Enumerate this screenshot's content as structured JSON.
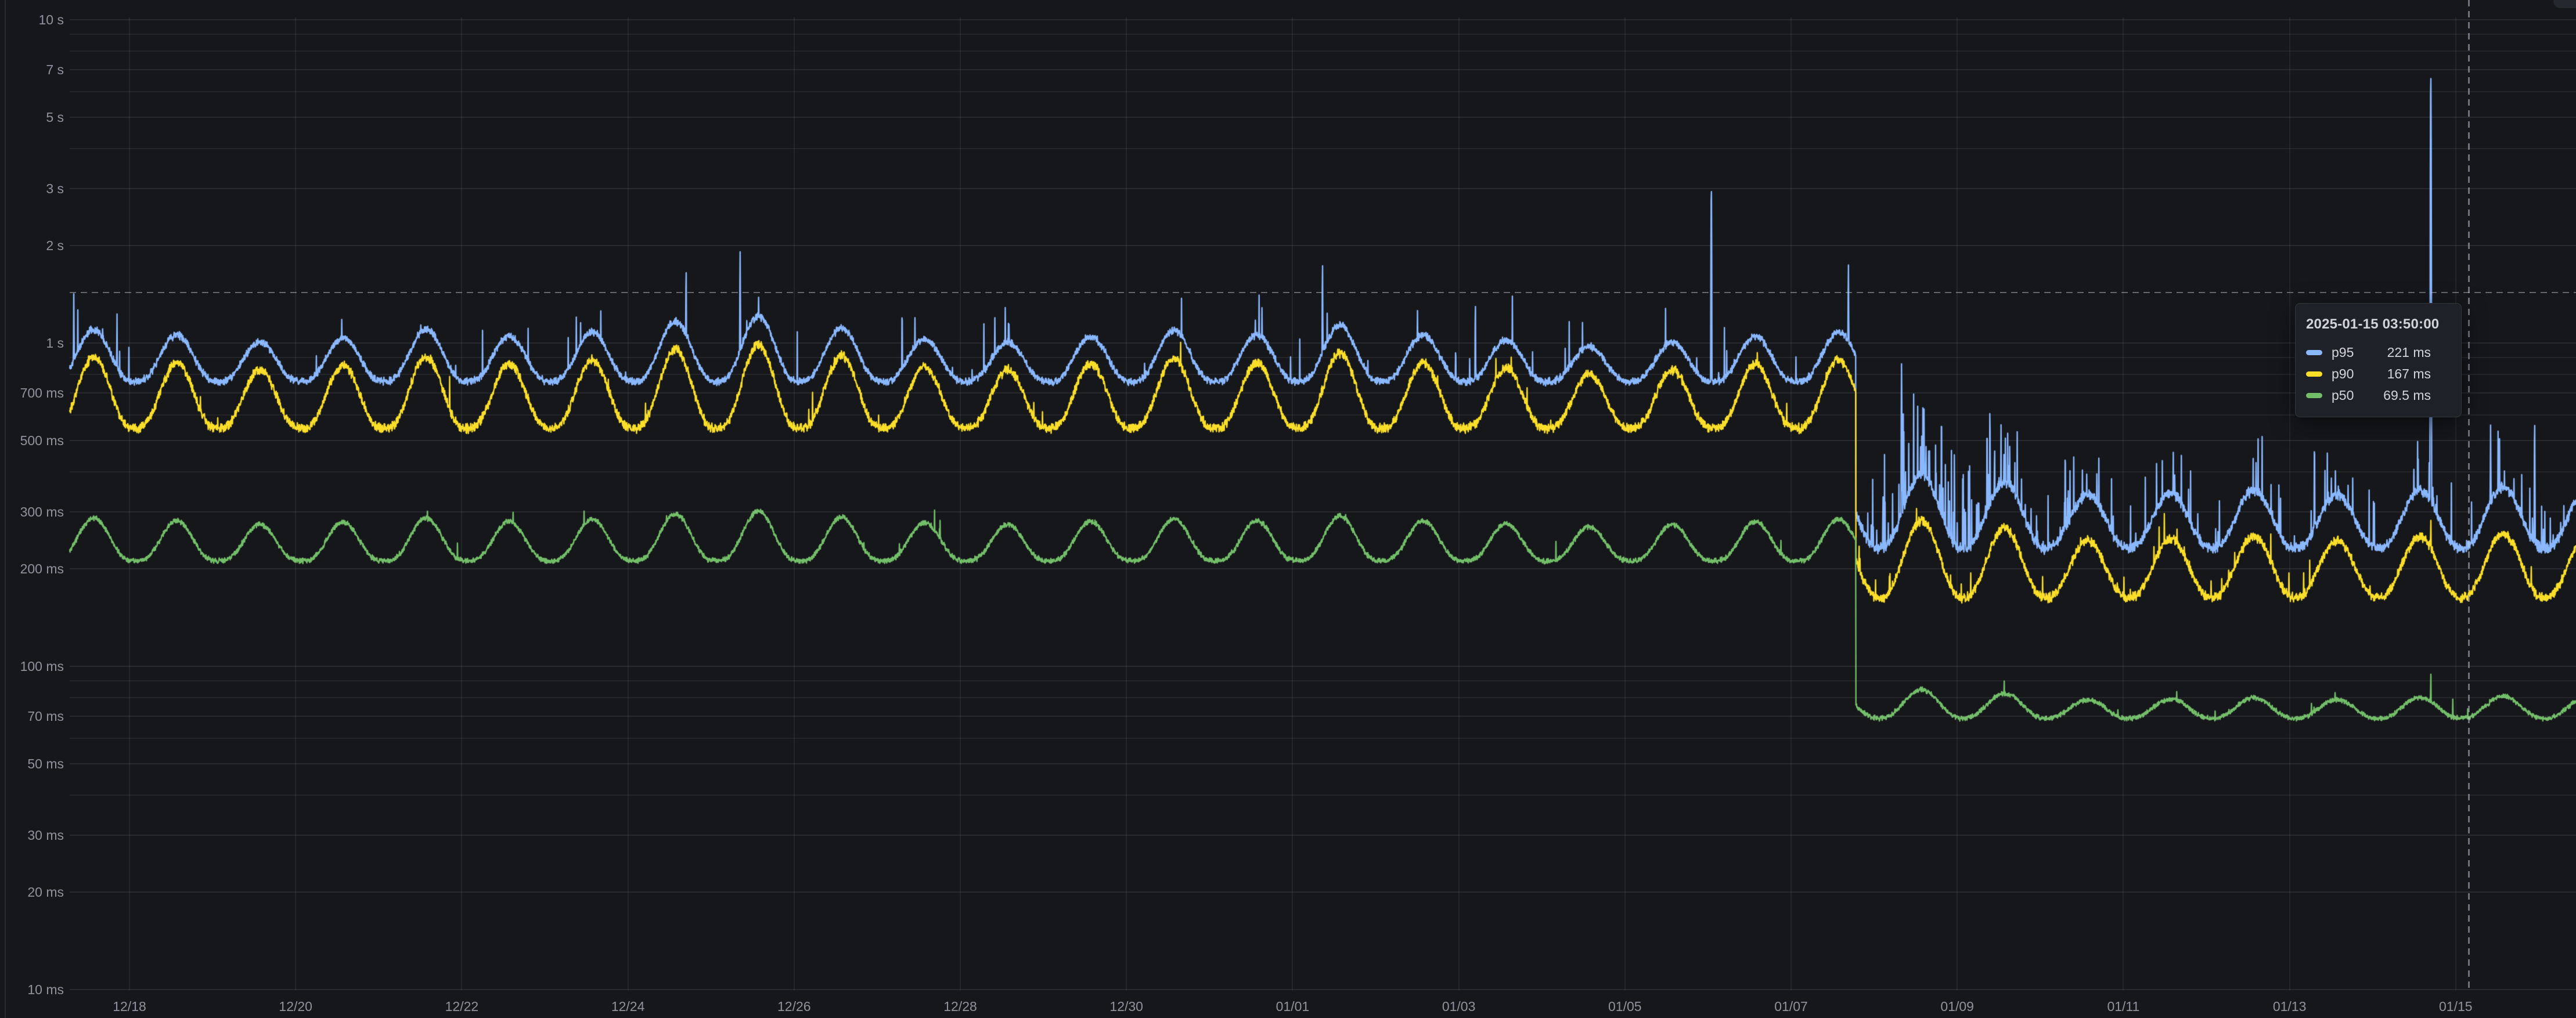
{
  "panel": {
    "theme": {
      "background": "#16171b",
      "grid_color": "rgba(204,204,220,0.08)",
      "text_color": "rgba(204,204,220,0.68)",
      "cursor_color": "rgba(204,204,220,0.50)",
      "tooltip_background": "#1e2127"
    }
  },
  "chart_data": {
    "type": "line",
    "title": "",
    "xlabel": "",
    "ylabel": "",
    "grid": true,
    "legend_position": "none",
    "x_axis": {
      "unit": "date",
      "tick_labels": [
        "12/18",
        "12/20",
        "12/22",
        "12/24",
        "12/26",
        "12/28",
        "12/30",
        "01/01",
        "01/03",
        "01/05",
        "01/07",
        "01/09",
        "01/11",
        "01/13",
        "01/15"
      ],
      "tick_day_offsets": [
        0,
        2,
        4,
        6,
        8,
        10,
        12,
        14,
        16,
        18,
        20,
        22,
        24,
        26,
        28
      ],
      "range_days": [
        -0.719,
        29.45
      ]
    },
    "y_axis": {
      "scale": "log10",
      "unit": "ms",
      "range_ms": [
        10,
        10000
      ],
      "labeled_ticks": [
        {
          "ms": 10000,
          "label": "10 s"
        },
        {
          "ms": 7000,
          "label": "7 s"
        },
        {
          "ms": 5000,
          "label": "5 s"
        },
        {
          "ms": 3000,
          "label": "3 s"
        },
        {
          "ms": 2000,
          "label": "2 s"
        },
        {
          "ms": 1000,
          "label": "1 s"
        },
        {
          "ms": 700,
          "label": "700 ms"
        },
        {
          "ms": 500,
          "label": "500 ms"
        },
        {
          "ms": 300,
          "label": "300 ms"
        },
        {
          "ms": 200,
          "label": "200 ms"
        },
        {
          "ms": 100,
          "label": "100 ms"
        },
        {
          "ms": 70,
          "label": "70 ms"
        },
        {
          "ms": 50,
          "label": "50 ms"
        },
        {
          "ms": 30,
          "label": "30 ms"
        },
        {
          "ms": 20,
          "label": "20 ms"
        },
        {
          "ms": 10,
          "label": "10 ms"
        }
      ],
      "minor_tick_ms": [
        9000,
        8000,
        6000,
        4000,
        900,
        800,
        600,
        400,
        90,
        80,
        60,
        40
      ]
    },
    "sample_rate_minutes": 5,
    "step_change_day_offset": 20.78,
    "daily_phase": {
      "trough_frac": 0.07,
      "peak_frac": 0.57
    },
    "daily_peak_multipliers": [
      [
        -1,
        1.04
      ],
      [
        0,
        1.0
      ],
      [
        1,
        0.95
      ],
      [
        2,
        0.98
      ],
      [
        3,
        1.04
      ],
      [
        4,
        0.99
      ],
      [
        5,
        1.02
      ],
      [
        6,
        1.1
      ],
      [
        7,
        1.14
      ],
      [
        8,
        1.05
      ],
      [
        9,
        0.97
      ],
      [
        10,
        0.95
      ],
      [
        11,
        0.99
      ],
      [
        12,
        1.03
      ],
      [
        13,
        1.0
      ],
      [
        14,
        1.07
      ],
      [
        15,
        1.0
      ],
      [
        16,
        0.96
      ],
      [
        17,
        0.92
      ],
      [
        18,
        0.95
      ],
      [
        19,
        0.99
      ],
      [
        20,
        1.02
      ],
      [
        21,
        1.12
      ],
      [
        22,
        1.06
      ],
      [
        23,
        0.97
      ],
      [
        24,
        0.98
      ],
      [
        25,
        1.0
      ],
      [
        26,
        0.97
      ],
      [
        27,
        1.0
      ],
      [
        28,
        1.02
      ],
      [
        29,
        1.0
      ]
    ],
    "series": [
      {
        "name": "p95",
        "color": "#8AB8FF",
        "seed": 11,
        "mult_exp": 1,
        "phase1": {
          "trough_ms": 760,
          "peak_ms": 1060,
          "noise": 0.032,
          "bump_exp": 1.4
        },
        "phase2": {
          "trough_ms": 232,
          "peak_ms": 350,
          "noise": 0.045,
          "bump_exp": 1.2
        },
        "micro_spike_prob": 0.012,
        "micro_spike_amp": 0.45,
        "phase2_spike_prob": 0.05,
        "phase2_spike_amp": 0.55,
        "dense_spike_window_days": [
          21.0,
          22.8
        ],
        "dense_spike_prob": 0.09,
        "dense_spike_amp": 1.1,
        "spikes": [
          [
            -0.67,
            1450
          ],
          [
            -0.15,
            1260
          ],
          [
            6.7,
            1780
          ],
          [
            7.35,
            1960
          ],
          [
            9.3,
            1350
          ],
          [
            14.36,
            1830
          ],
          [
            16.2,
            1400
          ],
          [
            19.04,
            3250
          ],
          [
            20.69,
            1820
          ],
          [
            21.33,
            880
          ],
          [
            21.6,
            640
          ],
          [
            22.45,
            500
          ],
          [
            23.3,
            490
          ],
          [
            24.6,
            470
          ],
          [
            26.3,
            520
          ],
          [
            27.7,
            7100
          ],
          [
            28.42,
            560
          ],
          [
            28.95,
            600
          ]
        ]
      },
      {
        "name": "p90",
        "color": "#FADE2A",
        "seed": 22,
        "mult_exp": 1,
        "phase1": {
          "trough_ms": 545,
          "peak_ms": 870,
          "noise": 0.04,
          "bump_exp": 1.4
        },
        "phase2": {
          "trough_ms": 163,
          "peak_ms": 252,
          "noise": 0.04,
          "bump_exp": 1.2
        },
        "micro_spike_prob": 0.006,
        "micro_spike_amp": 0.25,
        "phase2_spike_prob": 0.01,
        "phase2_spike_amp": 0.2,
        "spikes": [
          [
            27.7,
            305
          ]
        ]
      },
      {
        "name": "p50",
        "color": "#73BF69",
        "seed": 33,
        "mult_exp": 0.5,
        "phase1": {
          "trough_ms": 212,
          "peak_ms": 282,
          "noise": 0.022,
          "bump_exp": 1.5
        },
        "phase2": {
          "trough_ms": 69,
          "peak_ms": 80,
          "noise": 0.02,
          "bump_exp": 1.2
        },
        "micro_spike_prob": 0.004,
        "micro_spike_amp": 0.15,
        "phase2_spike_prob": 0.006,
        "phase2_spike_amp": 0.12,
        "spikes": [
          [
            27.7,
            102
          ]
        ]
      }
    ],
    "cursor": {
      "time_label": "2025-01-15 03:50:00",
      "day_offset": 28.1597,
      "y_value_ms": 1430
    },
    "tooltip": {
      "title": "2025-01-15 03:50:00",
      "rows": [
        {
          "series": "p95",
          "value": "221 ms"
        },
        {
          "series": "p90",
          "value": "167 ms"
        },
        {
          "series": "p50",
          "value": "69.5 ms"
        }
      ]
    }
  }
}
